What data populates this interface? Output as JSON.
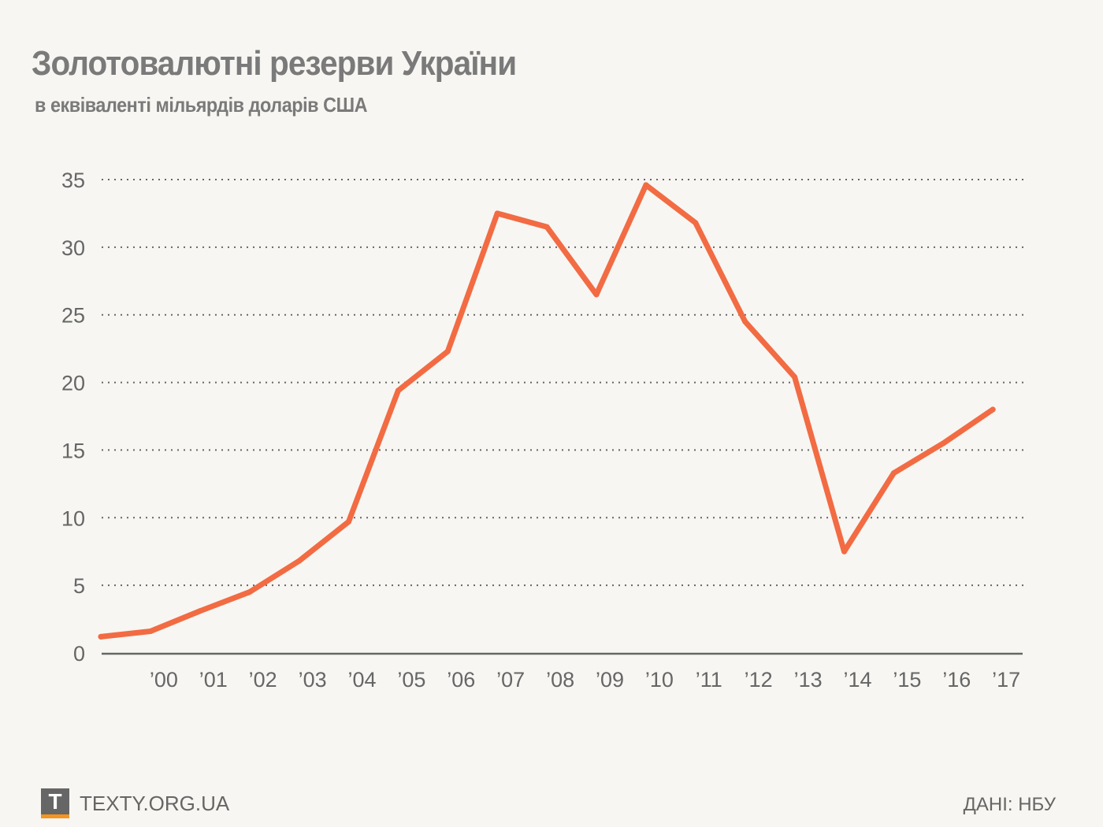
{
  "header": {
    "title": "Золотовалютні резерви України",
    "subtitle": "в еквіваленті мільярдів доларів США"
  },
  "footer": {
    "logo_letter": "T",
    "site": "TEXTY.ORG.UA",
    "source": "ДАНІ: НБУ"
  },
  "colors": {
    "line": "#f26b43",
    "axis": "#666666",
    "grid": "#666666",
    "background": "#f7f6f2",
    "logo_strip": "#f7941d"
  },
  "chart_data": {
    "type": "line",
    "title": "Золотовалютні резерви України",
    "subtitle": "в еквіваленті мільярдів доларів США",
    "xlabel": "",
    "ylabel": "",
    "ylim": [
      0,
      35
    ],
    "yticks": [
      0,
      5,
      10,
      15,
      20,
      25,
      30,
      35
    ],
    "grid": true,
    "x": [
      1999,
      2000,
      2001,
      2002,
      2003,
      2004,
      2005,
      2006,
      2007,
      2008,
      2009,
      2010,
      2011,
      2012,
      2013,
      2014,
      2015,
      2016,
      2017
    ],
    "xtick_labels": [
      "’00",
      "’01",
      "’02",
      "’03",
      "’04",
      "’05",
      "’06",
      "’07",
      "’08",
      "’09",
      "’10",
      "’11",
      "’12",
      "’13",
      "’14",
      "’15",
      "’16",
      "’17"
    ],
    "series": [
      {
        "name": "Золотовалютні резерви",
        "values": [
          1.2,
          1.6,
          3.1,
          4.5,
          6.8,
          9.7,
          19.4,
          22.3,
          32.5,
          31.5,
          26.5,
          34.6,
          31.8,
          24.5,
          20.4,
          7.5,
          13.3,
          15.5,
          18.0
        ]
      }
    ]
  }
}
